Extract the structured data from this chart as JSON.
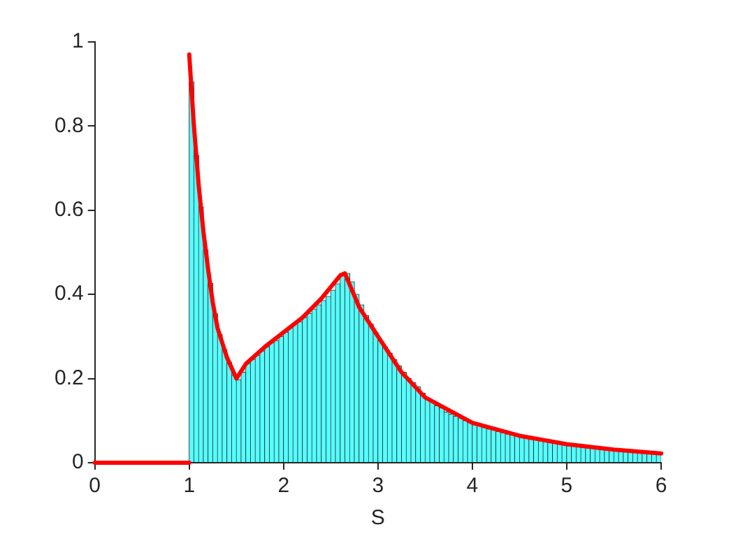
{
  "chart_data": {
    "type": "histogram",
    "xlabel": "S",
    "color": "#55ffff",
    "bins": [
      1,
      1.05,
      1.1,
      1.15,
      1.2,
      1.25,
      1.3,
      1.35,
      1.4,
      1.45,
      1.5,
      1.55,
      1.6,
      1.65,
      1.7,
      1.75,
      1.8,
      1.85,
      1.9,
      1.95,
      2,
      2.05,
      2.1,
      2.15,
      2.2,
      2.25,
      2.3,
      2.35,
      2.4,
      2.45,
      2.5,
      2.55,
      2.6,
      2.65,
      2.7,
      2.75,
      2.8,
      2.85,
      2.9,
      2.95,
      3,
      3.05,
      3.1,
      3.15,
      3.2,
      3.25,
      3.3,
      3.35,
      3.4,
      3.45,
      3.5,
      3.55,
      3.6,
      3.65,
      3.7,
      3.75,
      3.8,
      3.85,
      3.9,
      3.95,
      4,
      4.05,
      4.1,
      4.15,
      4.2,
      4.25,
      4.3,
      4.35,
      4.4,
      4.45,
      4.5,
      4.55,
      4.6,
      4.65,
      4.7,
      4.75,
      4.8,
      4.85,
      4.9,
      4.95,
      5,
      5.05,
      5.1,
      5.15,
      5.2,
      5.25,
      5.3,
      5.35,
      5.4,
      5.45,
      5.5,
      5.55,
      5.6,
      5.65,
      5.7,
      5.75,
      5.8,
      5.85,
      5.9,
      5.95,
      6
    ],
    "values": [
      0.905,
      0.73,
      0.607,
      0.505,
      0.426,
      0.354,
      0.305,
      0.269,
      0.239,
      0.207,
      0.197,
      0.215,
      0.235,
      0.245,
      0.255,
      0.265,
      0.275,
      0.285,
      0.29,
      0.3,
      0.31,
      0.32,
      0.33,
      0.335,
      0.345,
      0.355,
      0.365,
      0.375,
      0.385,
      0.395,
      0.41,
      0.425,
      0.45,
      0.45,
      0.43,
      0.4,
      0.375,
      0.35,
      0.33,
      0.31,
      0.29,
      0.275,
      0.26,
      0.245,
      0.23,
      0.215,
      0.2,
      0.19,
      0.18,
      0.165,
      0.15,
      0.145,
      0.135,
      0.13,
      0.12,
      0.115,
      0.11,
      0.105,
      0.1,
      0.095,
      0.09,
      0.087,
      0.083,
      0.08,
      0.077,
      0.074,
      0.071,
      0.068,
      0.066,
      0.063,
      0.061,
      0.059,
      0.057,
      0.055,
      0.053,
      0.051,
      0.049,
      0.047,
      0.046,
      0.044,
      0.042,
      0.041,
      0.039,
      0.038,
      0.037,
      0.035,
      0.034,
      0.033,
      0.032,
      0.031,
      0.03,
      0.029,
      0.028,
      0.027,
      0.026,
      0.025,
      0.024,
      0.023,
      0.022,
      0.021
    ],
    "series": [
      {
        "type": "line",
        "color": "#ff0000",
        "x": [
          0,
          1
        ],
        "values": [
          0,
          0
        ]
      },
      {
        "type": "line",
        "color": "#ff0000",
        "x": [
          1,
          1.05,
          1.1,
          1.15,
          1.2,
          1.25,
          1.3,
          1.4,
          1.5,
          1.6,
          1.8,
          2,
          2.2,
          2.4,
          2.6,
          2.65,
          2.8,
          3,
          3.25,
          3.5,
          4,
          4.5,
          5,
          5.5,
          6
        ],
        "values": [
          0.97,
          0.8,
          0.66,
          0.55,
          0.46,
          0.38,
          0.32,
          0.25,
          0.2,
          0.235,
          0.275,
          0.31,
          0.345,
          0.39,
          0.445,
          0.45,
          0.37,
          0.3,
          0.215,
          0.155,
          0.095,
          0.064,
          0.044,
          0.031,
          0.022
        ]
      }
    ],
    "marker": "none",
    "line_style": "solid",
    "xlim": [
      0,
      6
    ],
    "xticks": [
      0,
      1,
      2,
      3,
      4,
      5,
      6
    ],
    "ylim": [
      0,
      1
    ],
    "yticks": [
      0,
      0.2,
      0.4,
      0.6,
      0.8,
      1
    ],
    "grid": false,
    "legend": false
  }
}
